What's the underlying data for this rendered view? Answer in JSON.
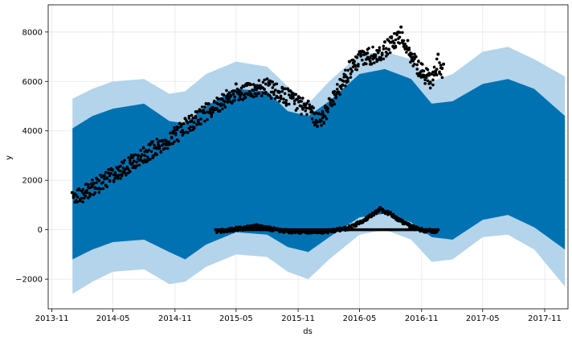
{
  "chart_data": {
    "type": "line",
    "title": "",
    "xlabel": "ds",
    "ylabel": "y",
    "grid": true,
    "x_tick_labels": [
      "2013-11",
      "2014-05",
      "2014-11",
      "2015-05",
      "2015-11",
      "2016-05",
      "2016-11",
      "2017-05",
      "2017-11"
    ],
    "y_tick_labels": [
      "−2000",
      "0",
      "2000",
      "4000",
      "6000",
      "8000"
    ],
    "y_ticks": [
      -2000,
      0,
      2000,
      4000,
      6000,
      8000
    ],
    "xlim": [
      "2013-10-21",
      "2018-01-09"
    ],
    "ylim": [
      -3200,
      9100
    ],
    "colors": {
      "forecast": "#0072B2",
      "interval": "#b3d4ea",
      "observed": "#000000"
    },
    "series": [
      {
        "kind": "uncertainty_interval",
        "x": [
          "2014-01-01",
          "2014-03-01",
          "2014-05-01",
          "2014-08-01",
          "2014-10-15",
          "2014-12-01",
          "2015-02-01",
          "2015-05-01",
          "2015-08-01",
          "2015-10-01",
          "2015-12-01",
          "2016-02-01",
          "2016-05-01",
          "2016-07-15",
          "2016-10-01",
          "2016-12-01",
          "2017-02-01",
          "2017-05-01",
          "2017-07-15",
          "2017-10-01",
          "2017-12-31"
        ],
        "upper": [
          5300,
          5700,
          6000,
          6100,
          5500,
          5600,
          6300,
          6800,
          6600,
          5800,
          5100,
          6000,
          7100,
          7200,
          6900,
          6000,
          6300,
          7200,
          7400,
          6900,
          6200
        ],
        "lower": [
          -2600,
          -2100,
          -1700,
          -1600,
          -2200,
          -2100,
          -1500,
          -1000,
          -1100,
          -1700,
          -2000,
          -1200,
          -200,
          0,
          -400,
          -1300,
          -1200,
          -300,
          -200,
          -800,
          -2300
        ]
      },
      {
        "kind": "forecast_band",
        "x": [
          "2014-01-01",
          "2014-03-01",
          "2014-05-01",
          "2014-08-01",
          "2014-10-15",
          "2014-12-01",
          "2015-02-01",
          "2015-05-01",
          "2015-08-01",
          "2015-10-01",
          "2015-12-01",
          "2016-02-01",
          "2016-05-01",
          "2016-07-15",
          "2016-10-01",
          "2016-12-01",
          "2017-02-01",
          "2017-05-01",
          "2017-07-15",
          "2017-10-01",
          "2017-12-31"
        ],
        "upper": [
          4100,
          4600,
          4900,
          5100,
          4400,
          4300,
          5000,
          5700,
          5600,
          4800,
          4600,
          5200,
          6300,
          6500,
          6100,
          5100,
          5200,
          5900,
          6100,
          5700,
          4600
        ],
        "lower": [
          -1200,
          -800,
          -500,
          -400,
          -900,
          -1200,
          -600,
          -100,
          -200,
          -700,
          -900,
          -300,
          500,
          650,
          300,
          -300,
          -400,
          400,
          600,
          100,
          -800
        ]
      },
      {
        "kind": "observed_upper_cluster",
        "x": [
          "2013-12-31",
          "2014-11-15",
          "2014-12-01",
          "2015-02-01",
          "2015-05-01",
          "2015-08-01",
          "2015-10-01",
          "2015-12-01",
          "2016-01-01",
          "2016-02-01",
          "2016-04-01",
          "2016-05-01",
          "2016-07-15",
          "2016-09-01",
          "2016-10-15",
          "2016-12-01",
          "2016-12-20",
          "2017-01-05"
        ],
        "y": [
          1500,
          4300,
          4500,
          5100,
          5900,
          6100,
          5700,
          5200,
          4700,
          5300,
          6800,
          7200,
          7600,
          8200,
          7000,
          6300,
          7100,
          6700
        ]
      },
      {
        "kind": "observed_lower_cluster",
        "x": [
          "2015-03-01",
          "2015-05-01",
          "2015-07-01",
          "2015-10-01",
          "2016-02-01",
          "2016-04-01",
          "2016-06-01",
          "2016-07-01",
          "2016-08-01",
          "2016-09-15",
          "2016-11-01",
          "2016-12-20"
        ],
        "y": [
          0,
          100,
          200,
          0,
          0,
          150,
          600,
          900,
          700,
          300,
          50,
          0
        ]
      }
    ]
  }
}
